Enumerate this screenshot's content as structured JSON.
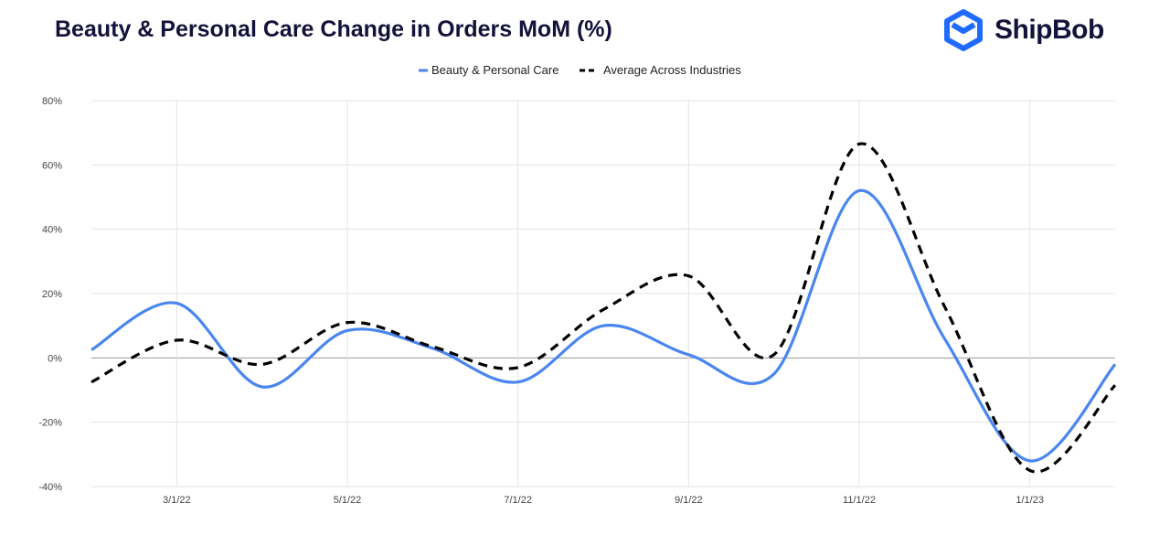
{
  "title": "Beauty & Personal Care Change in Orders MoM (%)",
  "logo": {
    "text": "ShipBob",
    "color": "#1f6bff"
  },
  "chart_data": {
    "type": "line",
    "title": "Beauty & Personal Care Change in Orders MoM (%)",
    "legend_position": "top",
    "grid": true,
    "x": [
      "2/1/22",
      "3/1/22",
      "4/1/22",
      "5/1/22",
      "6/1/22",
      "7/1/22",
      "8/1/22",
      "9/1/22",
      "10/1/22",
      "11/1/22",
      "12/1/22",
      "1/1/23",
      "2/1/23"
    ],
    "x_tick_labels": [
      "3/1/22",
      "5/1/22",
      "7/1/22",
      "9/1/22",
      "11/1/22",
      "1/1/23"
    ],
    "y_tick_labels": [
      "80%",
      "60%",
      "40%",
      "20%",
      "0%",
      "-20%",
      "-40%"
    ],
    "ylim": [
      -40,
      80
    ],
    "series": [
      {
        "name": "Beauty & Personal Care",
        "color": "#4a86f0",
        "dashed": false,
        "values": [
          2.5,
          17,
          -9,
          8.5,
          3,
          -7.5,
          10,
          1,
          -5,
          52,
          6,
          -32,
          -2
        ]
      },
      {
        "name": "Average Across Industries",
        "color": "#000000",
        "dashed": true,
        "values": [
          -7.5,
          5.5,
          -2,
          11,
          3.5,
          -3,
          15,
          25.5,
          1,
          66.5,
          16,
          -35,
          -8.5
        ]
      }
    ]
  }
}
